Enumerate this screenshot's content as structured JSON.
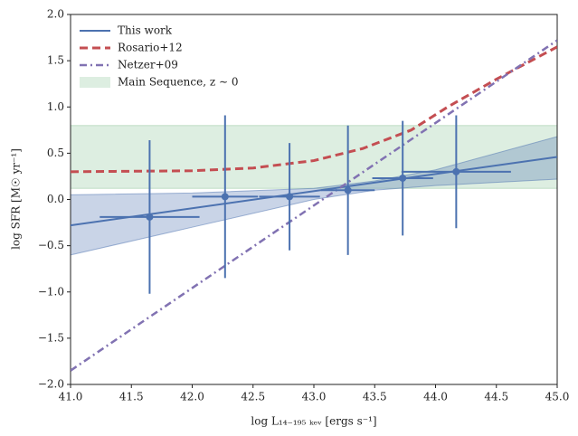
{
  "chart_data": {
    "type": "line",
    "xlabel": "log L₁₄₋₁₉₅ ₖₑᵥ [ergs s⁻¹]",
    "ylabel": "log SFR [M☉ yr⁻¹]",
    "xlim": [
      41,
      45
    ],
    "ylim": [
      -2,
      2
    ],
    "xticks": [
      {
        "value": 41,
        "label": "41.0"
      },
      {
        "value": 41.5,
        "label": "41.5"
      },
      {
        "value": 42,
        "label": "42.0"
      },
      {
        "value": 42.5,
        "label": "42.5"
      },
      {
        "value": 43,
        "label": "43.0"
      },
      {
        "value": 43.5,
        "label": "43.5"
      },
      {
        "value": 44,
        "label": "44.0"
      },
      {
        "value": 44.5,
        "label": "44.5"
      },
      {
        "value": 45,
        "label": "45.0"
      }
    ],
    "yticks": [
      {
        "value": -2,
        "label": "−2.0"
      },
      {
        "value": -1.5,
        "label": "−1.5"
      },
      {
        "value": -1,
        "label": "−1.0"
      },
      {
        "value": -0.5,
        "label": "−0.5"
      },
      {
        "value": 0,
        "label": "0.0"
      },
      {
        "value": 0.5,
        "label": "0.5"
      },
      {
        "value": 1,
        "label": "1.0"
      },
      {
        "value": 1.5,
        "label": "1.5"
      },
      {
        "value": 2,
        "label": "2.0"
      }
    ],
    "legend": "upper left",
    "series": [
      {
        "name": "This work",
        "color": "#4c72b0",
        "style": "solid",
        "x": [
          41,
          45
        ],
        "values": [
          -0.28,
          0.46
        ]
      },
      {
        "name": "Rosario+12",
        "color": "#c44e52",
        "style": "dashed",
        "x": [
          41,
          42,
          42.5,
          43,
          43.4,
          43.8,
          44.1,
          44.5,
          45
        ],
        "values": [
          0.3,
          0.31,
          0.34,
          0.42,
          0.55,
          0.75,
          1.0,
          1.3,
          1.65
        ]
      },
      {
        "name": "Netzer+09",
        "color": "#8172b2",
        "style": "dashdot",
        "x": [
          41,
          45
        ],
        "values": [
          -1.85,
          1.72
        ]
      }
    ],
    "bands": [
      {
        "name": "Main Sequence, z ∼ 0",
        "color": "#55a868",
        "x": [
          41,
          45
        ],
        "lower": [
          0.12,
          0.12
        ],
        "upper": [
          0.8,
          0.8
        ]
      }
    ],
    "confidence_band": {
      "color": "#4c72b0",
      "x": [
        41,
        42,
        43,
        43.5,
        44,
        45
      ],
      "lower": [
        -0.6,
        -0.3,
        0.0,
        0.1,
        0.15,
        0.22
      ],
      "upper": [
        0.05,
        0.07,
        0.12,
        0.2,
        0.32,
        0.68
      ]
    },
    "points": {
      "color": "#4c72b0",
      "x": [
        41.65,
        42.27,
        42.8,
        43.28,
        43.73,
        44.17
      ],
      "values": [
        -0.19,
        0.03,
        0.03,
        0.1,
        0.23,
        0.3
      ],
      "xerr": [
        0.41,
        0.27,
        0.25,
        0.22,
        0.25,
        0.45
      ],
      "yerr": [
        0.83,
        0.88,
        0.58,
        0.7,
        0.62,
        0.61
      ]
    }
  }
}
